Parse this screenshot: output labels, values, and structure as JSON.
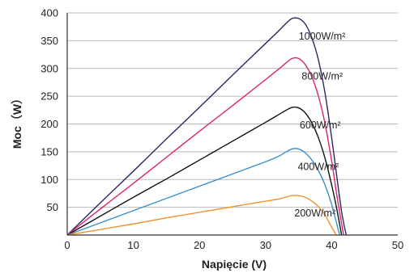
{
  "chart_data": {
    "type": "line",
    "xlabel": "Napięcie (V)",
    "ylabel": "Moc（W）",
    "xlim": [
      0,
      50
    ],
    "ylim": [
      0,
      400
    ],
    "xticks": [
      0,
      10,
      20,
      30,
      40,
      50
    ],
    "yticks": [
      50,
      100,
      150,
      200,
      250,
      300,
      350,
      400
    ],
    "grid": "horizontal",
    "legend": "inline labels",
    "series": [
      {
        "name": "1000W/m²",
        "color": "#2d2563",
        "x": [
          0,
          5,
          10,
          15,
          20,
          25,
          30,
          32,
          33,
          34,
          35,
          36,
          37,
          38,
          39,
          40,
          41,
          41.6,
          42.2
        ],
        "y": [
          0,
          58,
          115,
          173,
          230,
          288,
          345,
          368,
          380,
          390,
          390,
          380,
          355,
          315,
          255,
          175,
          85,
          35,
          0
        ]
      },
      {
        "name": "800W/m²",
        "color": "#d6246e",
        "x": [
          0,
          5,
          10,
          15,
          20,
          25,
          30,
          32,
          33,
          34,
          35,
          36,
          37,
          38,
          39,
          40,
          40.8,
          41.8
        ],
        "y": [
          0,
          47,
          93,
          140,
          187,
          233,
          280,
          299,
          309,
          318,
          318,
          307,
          285,
          250,
          200,
          133,
          70,
          0
        ]
      },
      {
        "name": "600W/m²",
        "color": "#111111",
        "x": [
          0,
          5,
          10,
          15,
          20,
          25,
          30,
          32,
          33,
          34,
          35,
          36,
          37,
          38,
          39,
          40,
          40.8,
          41.5
        ],
        "y": [
          0,
          34,
          68,
          101,
          135,
          169,
          203,
          217,
          224,
          230,
          229,
          220,
          202,
          175,
          138,
          90,
          45,
          0
        ]
      },
      {
        "name": "400W/m²",
        "color": "#3a8fc8",
        "x": [
          0,
          5,
          10,
          15,
          20,
          25,
          30,
          32,
          33,
          34,
          35,
          36,
          37,
          38,
          39,
          40,
          40.6,
          41.2
        ],
        "y": [
          0,
          22,
          44,
          66,
          88,
          110,
          132,
          142,
          149,
          155,
          155,
          148,
          135,
          116,
          90,
          55,
          28,
          0
        ]
      },
      {
        "name": "200W/m²",
        "color": "#f0922e",
        "x": [
          0,
          5,
          10,
          15,
          20,
          25,
          30,
          32,
          33,
          34,
          35,
          36,
          37,
          38,
          39,
          40,
          40.7
        ],
        "y": [
          0,
          10,
          20,
          31,
          41,
          51,
          61,
          65,
          68,
          71,
          71,
          68,
          61,
          51,
          36,
          14,
          0
        ]
      }
    ]
  }
}
